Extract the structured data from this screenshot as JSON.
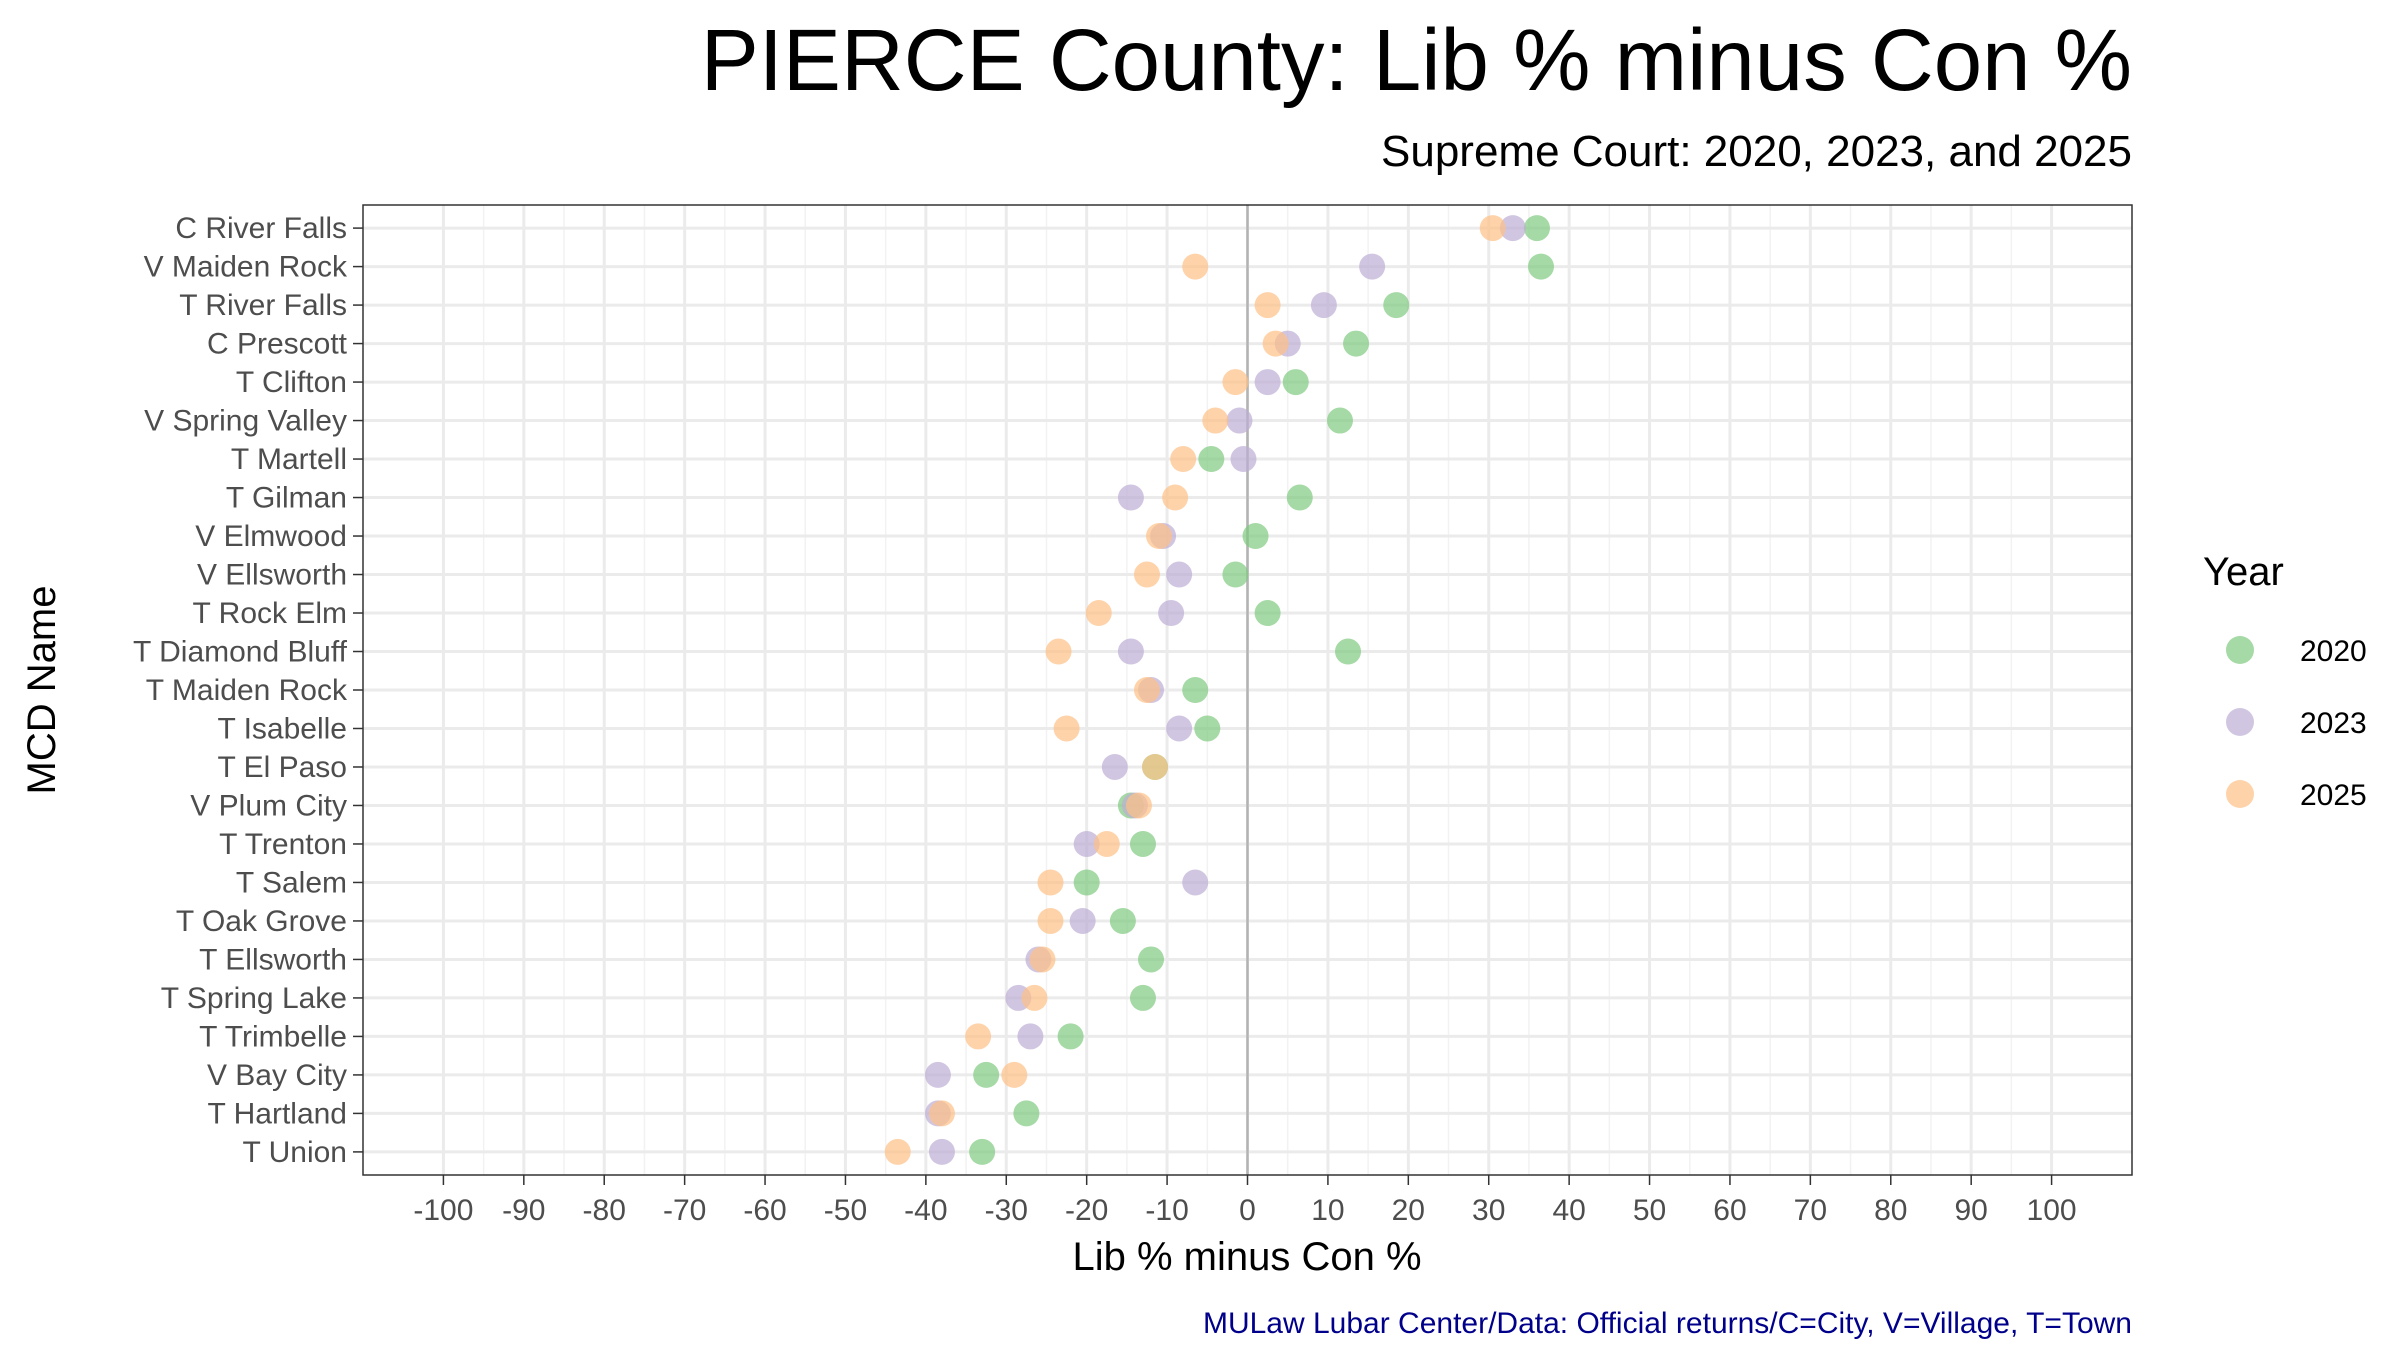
{
  "title": "PIERCE County: Lib % minus Con %",
  "subtitle": "Supreme Court: 2020, 2023, and 2025",
  "caption": "MULaw Lubar Center/Data: Official returns/C=City, V=Village, T=Town",
  "chart_data": {
    "type": "scatter",
    "xlabel": "Lib % minus Con %",
    "ylabel": "MCD Name",
    "xlim": [
      -110,
      110
    ],
    "x_ticks": [
      -100,
      -90,
      -80,
      -70,
      -60,
      -50,
      -40,
      -30,
      -20,
      -10,
      0,
      10,
      20,
      30,
      40,
      50,
      60,
      70,
      80,
      90,
      100
    ],
    "x_tick_labels": [
      "-100",
      "-90",
      "-80",
      "-70",
      "-60",
      "-50",
      "-40",
      "-30",
      "-20",
      "-10",
      "0",
      "10",
      "20",
      "30",
      "40",
      "50",
      "60",
      "70",
      "80",
      "90",
      "100"
    ],
    "categories": [
      "C River Falls",
      "V Maiden Rock",
      "T River Falls",
      "C Prescott",
      "T Clifton",
      "V Spring Valley",
      "T Martell",
      "T Gilman",
      "V Elmwood",
      "V Ellsworth",
      "T Rock Elm",
      "T Diamond Bluff",
      "T Maiden Rock",
      "T Isabelle",
      "T El Paso",
      "V Plum City",
      "T Trenton",
      "T Salem",
      "T Oak Grove",
      "T Ellsworth",
      "T Spring Lake",
      "T Trimbelle",
      "V Bay City",
      "T Hartland",
      "T Union"
    ],
    "reference_line_x": 0,
    "grid": true,
    "legend_title": "Year",
    "legend_position": "right",
    "series": [
      {
        "name": "2020",
        "color": "#7fc97f",
        "values": [
          36,
          36.5,
          18.5,
          13.5,
          6,
          11.5,
          -4.5,
          6.5,
          1,
          -1.5,
          2.5,
          12.5,
          -6.5,
          -5,
          -11.5,
          -14.5,
          -13,
          -20,
          -15.5,
          -12,
          -13,
          -22,
          -32.5,
          -27.5,
          -33
        ]
      },
      {
        "name": "2023",
        "color": "#beaed4",
        "values": [
          33,
          15.5,
          9.5,
          5,
          2.5,
          -1,
          -0.5,
          -14.5,
          -10.5,
          -8.5,
          -9.5,
          -14.5,
          -12,
          -8.5,
          -16.5,
          -14,
          -20,
          -6.5,
          -20.5,
          -26,
          -28.5,
          -27,
          -38.5,
          -38.5,
          -38
        ]
      },
      {
        "name": "2025",
        "color": "#fdc086",
        "values": [
          30.5,
          -6.5,
          2.5,
          3.5,
          -1.5,
          -4,
          -8,
          -9,
          -11,
          -12.5,
          -18.5,
          -23.5,
          -12.5,
          -22.5,
          -11.5,
          -13.5,
          -17.5,
          -24.5,
          -24.5,
          -25.5,
          -26.5,
          -33.5,
          -29,
          -38,
          -43.5
        ]
      }
    ]
  }
}
